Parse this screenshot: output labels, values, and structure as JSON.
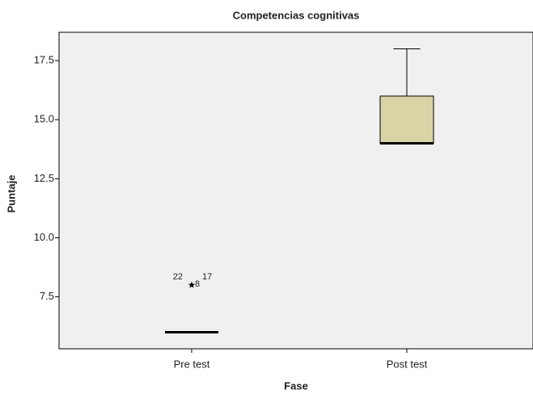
{
  "chart_data": {
    "type": "box",
    "title": "Competencias cognitivas",
    "x_label": "Fase",
    "y_label": "Puntaje",
    "categories": [
      "Pre test",
      "Post test"
    ],
    "series": [
      {
        "min": 6,
        "q1": 6,
        "median": 6,
        "q3": 6,
        "max": 6,
        "outliers": [
          {
            "value": 8,
            "labels": [
              "22",
              "8",
              "17"
            ]
          }
        ]
      },
      {
        "min": 14,
        "q1": 14,
        "median": 14,
        "q3": 16,
        "max": 18,
        "outliers": []
      }
    ],
    "color": "#d8d4a6",
    "ylim": [
      5.3,
      18.7
    ],
    "yticks": [
      7.5,
      {
        "value": 10,
        "label": "10.0"
      },
      12.5,
      {
        "value": 15,
        "label": "15.0"
      },
      17.5
    ]
  }
}
